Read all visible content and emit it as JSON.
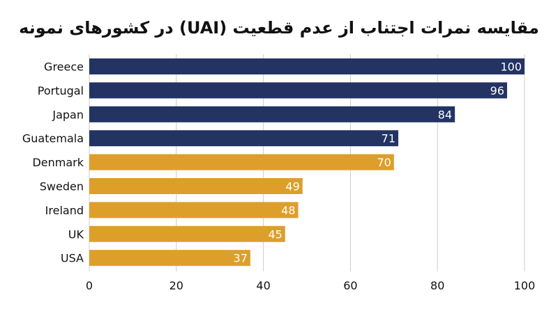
{
  "chart_data": {
    "type": "bar",
    "orientation": "horizontal",
    "title": "مقایسه نمرات اجتناب از عدم قطعیت (UAI) در کشورهای نمونه",
    "xlabel": "",
    "ylabel": "",
    "xlim": [
      0,
      100
    ],
    "x_ticks": [
      0,
      20,
      40,
      60,
      80,
      100
    ],
    "grid": "vertical",
    "legend": "none",
    "categories": [
      "Greece",
      "Portugal",
      "Japan",
      "Guatemala",
      "Denmark",
      "Sweden",
      "Ireland",
      "UK",
      "USA"
    ],
    "values": [
      100,
      96,
      84,
      71,
      70,
      49,
      48,
      45,
      37
    ],
    "bar_colors": [
      "#233463",
      "#233463",
      "#233463",
      "#233463",
      "#DD9F2A",
      "#DD9F2A",
      "#DD9F2A",
      "#DD9F2A",
      "#DD9F2A"
    ],
    "data_labels": [
      "100",
      "96",
      "84",
      "71",
      "70",
      "49",
      "48",
      "45",
      "37"
    ]
  }
}
